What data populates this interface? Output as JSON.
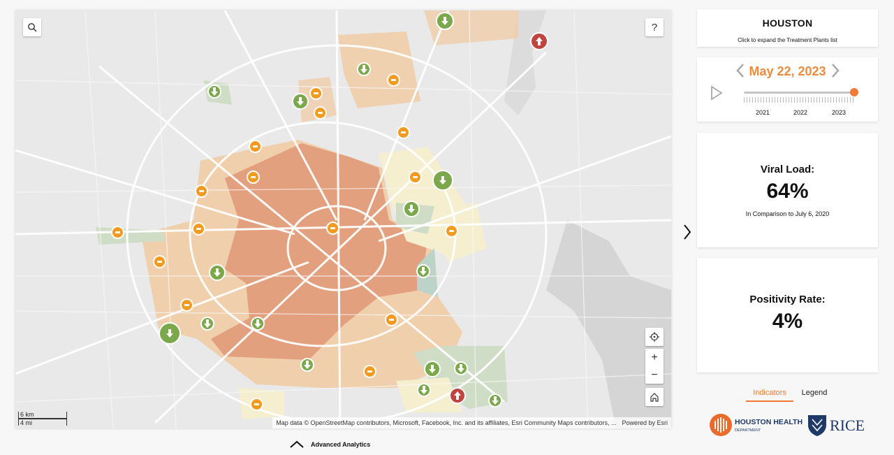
{
  "map": {
    "attribution": "Map data © OpenStreetMap contributors, Microsoft, Facebook, Inc. and its affiliates, Esri Community Maps contributors, ...",
    "powered_by": "Powered by Esri",
    "scale_km": "6 km",
    "scale_mi": "4 mi",
    "help_label": "?",
    "buttons": {
      "search_icon": "search-icon",
      "locate_icon": "crosshair-icon",
      "zoom_in": "+",
      "zoom_out": "−",
      "home_icon": "home-icon"
    },
    "markers": {
      "trend_colors": {
        "down": "#7aa84a",
        "steady": "#f39a21",
        "up": "#c0453f"
      }
    }
  },
  "panel": {
    "city": "HOUSTON",
    "city_hint": "Click to expand the Treatment Plants list",
    "date": "May 22, 2023",
    "timeline": {
      "years": [
        "2021",
        "2022",
        "2023"
      ],
      "position": 1.0
    },
    "viral_load": {
      "label": "Viral Load:",
      "value": "64%",
      "sub": "In Comparison to July 6, 2020"
    },
    "positivity": {
      "label": "Positivity Rate:",
      "value": "4%"
    },
    "tabs": [
      "Indicators",
      "Legend"
    ],
    "active_tab": "Indicators",
    "logo_hhd_main": "HOUSTON HEALTH",
    "logo_hhd_sub": "DEPARTMENT",
    "logo_rice": "RICE"
  },
  "footer": {
    "advanced_analytics": "Advanced Analytics"
  },
  "colors": {
    "accent": "#f07a35",
    "region_high": "#e3a07f",
    "region_mid": "#f0cda9",
    "region_low": "#f5efcf",
    "region_green": "#cfddc6"
  }
}
